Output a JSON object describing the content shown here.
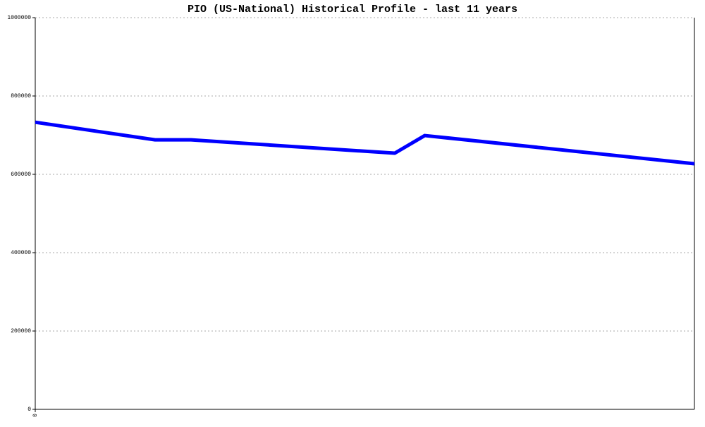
{
  "chart_data": {
    "type": "line",
    "title": "PIO (US-National) Historical Profile - last 11 years",
    "x": [
      0,
      2,
      2.6,
      6,
      6.5,
      11
    ],
    "series": [
      {
        "color": "#0000ff",
        "values": [
          733000,
          688000,
          688000,
          654000,
          699000,
          627000
        ]
      }
    ],
    "xlim": [
      0,
      11
    ],
    "xticks": [
      0
    ],
    "ylim": [
      0,
      1000000
    ],
    "yticks": [
      0,
      200000,
      400000,
      600000,
      800000,
      1000000
    ],
    "grid": true
  }
}
